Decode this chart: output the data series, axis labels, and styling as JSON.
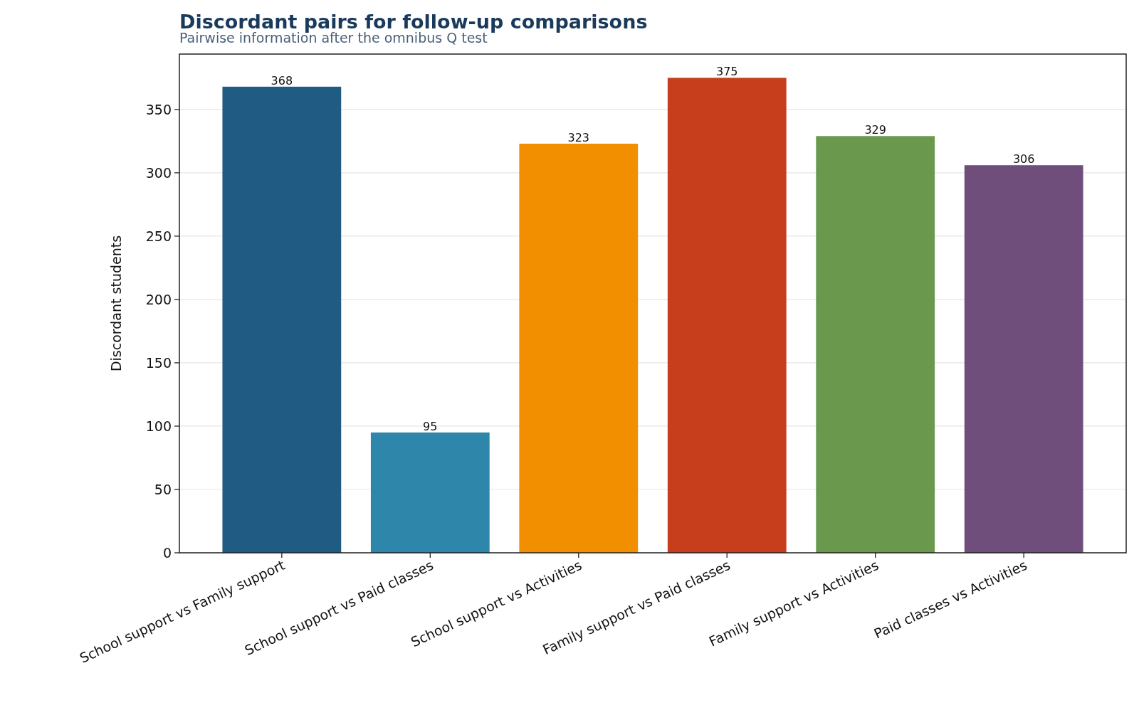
{
  "chart_data": {
    "type": "bar",
    "title": "Discordant pairs for follow-up comparisons",
    "subtitle": "Pairwise information after the omnibus Q test",
    "ylabel": "Discordant students",
    "categories": [
      "School support vs Family support",
      "School support vs Paid classes",
      "School support vs Activities",
      "Family support vs Paid classes",
      "Family support vs Activities",
      "Paid classes vs Activities"
    ],
    "values": [
      368,
      95,
      323,
      375,
      329,
      306
    ],
    "colors": [
      "#1f5b82",
      "#2e86ab",
      "#f18f01",
      "#c73e1d",
      "#6a994e",
      "#6f4e7c"
    ],
    "ylim": [
      0,
      393.75
    ],
    "yticks": [
      0,
      50,
      100,
      150,
      200,
      250,
      300,
      350
    ],
    "grid": "y",
    "data_labels": true
  }
}
